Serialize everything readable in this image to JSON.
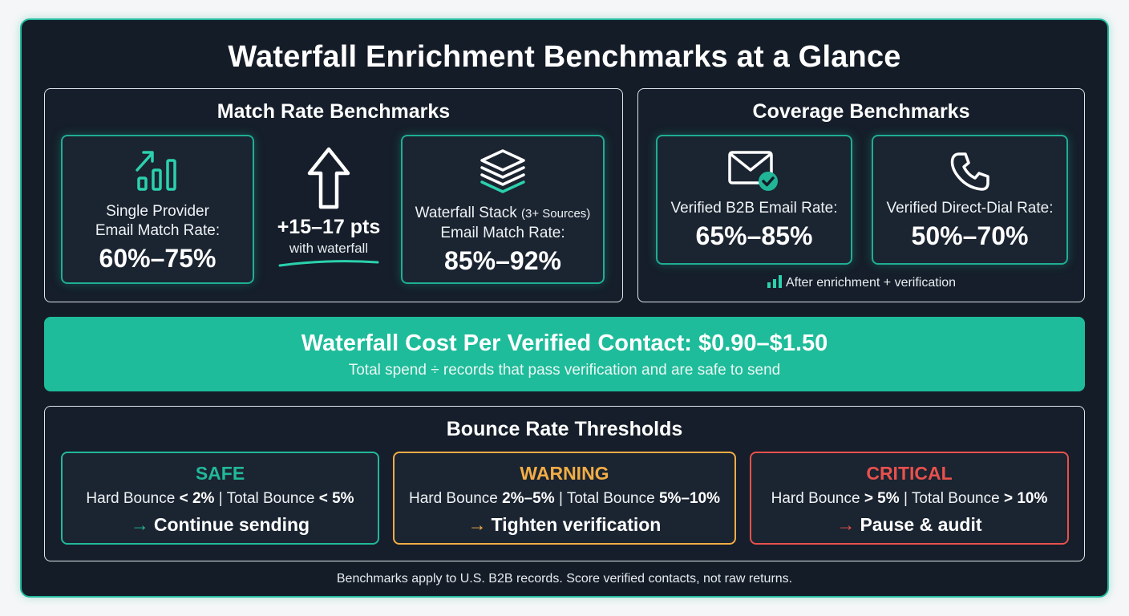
{
  "title": "Waterfall Enrichment Benchmarks at a Glance",
  "match": {
    "title": "Match Rate Benchmarks",
    "single": {
      "label_line1": "Single Provider",
      "label_line2": "Email Match Rate:",
      "value": "60%–75%",
      "icon": "bar-chart-up-icon"
    },
    "lift": {
      "value": "+15–17 pts",
      "caption": "with waterfall",
      "icon": "arrow-up-icon"
    },
    "waterfall": {
      "label_main": "Waterfall Stack",
      "label_small": "(3+ Sources)",
      "label_line2": "Email Match Rate:",
      "value": "85%–92%",
      "icon": "layers-icon"
    }
  },
  "coverage": {
    "title": "Coverage Benchmarks",
    "email": {
      "label": "Verified B2B Email Rate:",
      "value": "65%–85%",
      "icon": "mail-check-icon"
    },
    "phone": {
      "label": "Verified Direct-Dial Rate:",
      "value": "50%–70%",
      "icon": "phone-icon"
    },
    "note": "After enrichment + verification"
  },
  "cost": {
    "main": "Waterfall Cost Per Verified Contact: $0.90–$1.50",
    "sub": "Total spend ÷ records that pass verification and are safe to send"
  },
  "bounce": {
    "title": "Bounce Rate Thresholds",
    "safe": {
      "head": "SAFE",
      "hard_label": "Hard Bounce",
      "hard_value": "< 2%",
      "sep": "|",
      "total_label": "Total Bounce",
      "total_value": "< 5%",
      "arrow": "→",
      "action": "Continue sending",
      "color": "#22b89a"
    },
    "warning": {
      "head": "WARNING",
      "hard_label": "Hard Bounce",
      "hard_value": "2%–5%",
      "sep": "|",
      "total_label": "Total Bounce",
      "total_value": "5%–10%",
      "arrow": "→",
      "action": "Tighten verification",
      "color": "#f2ad45"
    },
    "critical": {
      "head": "CRITICAL",
      "hard_label": "Hard Bounce",
      "hard_value": "> 5%",
      "sep": "|",
      "total_label": "Total Bounce",
      "total_value": "> 10%",
      "arrow": "→",
      "action": "Pause & audit",
      "color": "#e8514d"
    }
  },
  "footer": "Benchmarks apply to U.S. B2B records. Score verified contacts, not raw returns."
}
